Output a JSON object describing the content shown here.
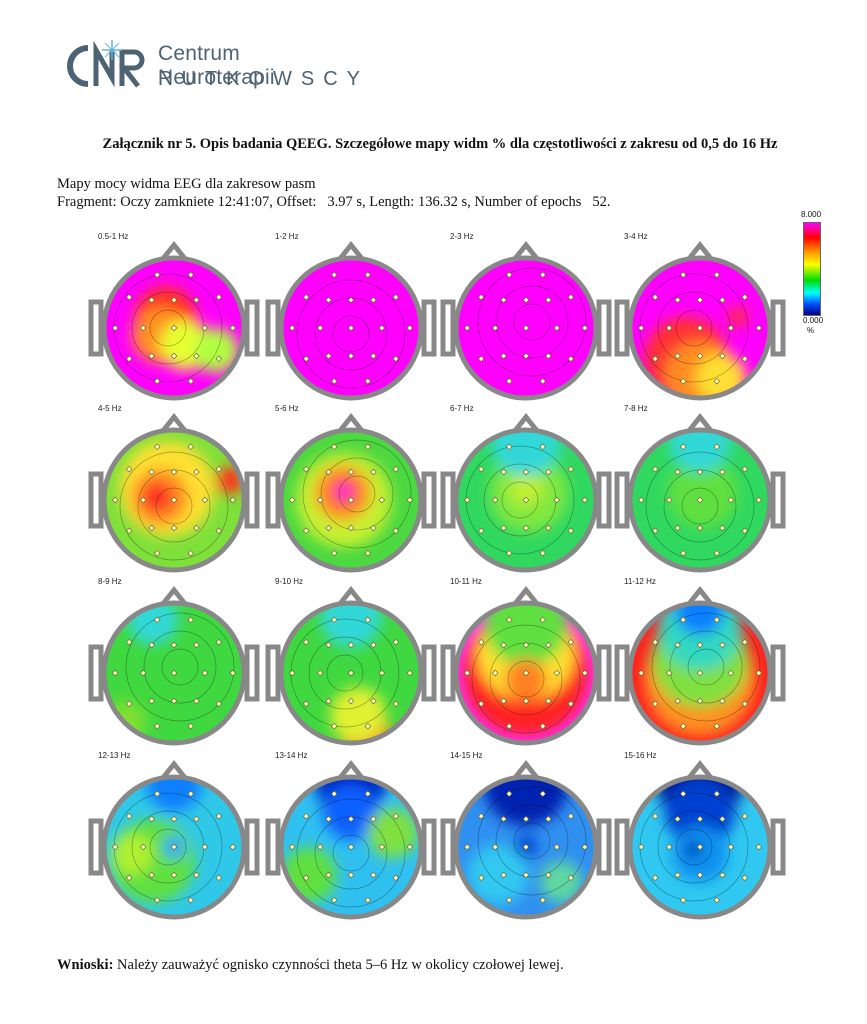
{
  "logo": {
    "mark_text": "CNR",
    "line1": "Centrum Neuroterapii",
    "line2": "RUTKOWSCY",
    "colors": {
      "text": "#4d6373",
      "accent": "#62b6d9"
    }
  },
  "title": "Załącznik nr 5. Opis badania QEEG. Szczegółowe mapy widm % dla częstotliwości z zakresu od 0,5 do 16 Hz",
  "subtitle1": "Mapy mocy widma EEG dla zakresow pasm",
  "subtitle2": "Fragment: Oczy zamkniete 12:41:07, Offset:   3.97 s, Length: 136.32 s, Number of epochs   52.",
  "scale": {
    "max": "8.000",
    "min": "0.000",
    "unit": "%"
  },
  "maps": [
    {
      "label": "0.5-1 Hz",
      "bg": "#ff00ff",
      "blobs": [
        [
          "#ff3020",
          0.44,
          0.42,
          0.22
        ],
        [
          "#ff9020",
          0.4,
          0.55,
          0.2
        ],
        [
          "#e8ff30",
          0.58,
          0.62,
          0.18
        ],
        [
          "#b0ff40",
          0.8,
          0.66,
          0.16
        ]
      ]
    },
    {
      "label": "1-2 Hz",
      "bg": "#ff00ff",
      "blobs": []
    },
    {
      "label": "2-3 Hz",
      "bg": "#ff00ff",
      "blobs": []
    },
    {
      "label": "3-4 Hz",
      "bg": "#ff00ff",
      "blobs": [
        [
          "#ff3030",
          0.4,
          0.72,
          0.3
        ],
        [
          "#ff8c20",
          0.5,
          0.84,
          0.25
        ],
        [
          "#ffe030",
          0.65,
          0.86,
          0.18
        ],
        [
          "#ff3030",
          0.77,
          0.42,
          0.07
        ]
      ]
    },
    {
      "label": "4-5 Hz",
      "bg": "#7ee03a",
      "blobs": [
        [
          "#ffe030",
          0.45,
          0.42,
          0.34
        ],
        [
          "#ff8820",
          0.4,
          0.48,
          0.2
        ],
        [
          "#ff2020",
          0.38,
          0.48,
          0.1
        ],
        [
          "#ff3020",
          0.9,
          0.36,
          0.1
        ]
      ]
    },
    {
      "label": "5-6 Hz",
      "bg": "#4cd840",
      "blobs": [
        [
          "#c8f030",
          0.45,
          0.5,
          0.34
        ],
        [
          "#ff9020",
          0.44,
          0.45,
          0.2
        ],
        [
          "#ff2030",
          0.45,
          0.44,
          0.1
        ],
        [
          "#ff30ff",
          0.45,
          0.44,
          0.05
        ]
      ]
    },
    {
      "label": "6-7 Hz",
      "bg": "#30d860",
      "blobs": [
        [
          "#80e840",
          0.52,
          0.45,
          0.28
        ],
        [
          "#c0f030",
          0.5,
          0.42,
          0.12
        ],
        [
          "#30d8d8",
          0.5,
          0.08,
          0.25
        ]
      ]
    },
    {
      "label": "7-8 Hz",
      "bg": "#30d860",
      "blobs": [
        [
          "#60e040",
          0.52,
          0.45,
          0.25
        ],
        [
          "#30d8d8",
          0.5,
          0.08,
          0.22
        ]
      ]
    },
    {
      "label": "8-9 Hz",
      "bg": "#40d840",
      "blobs": [
        [
          "#30d8d8",
          0.35,
          0.12,
          0.18
        ],
        [
          "#80e030",
          0.15,
          0.85,
          0.15
        ]
      ]
    },
    {
      "label": "9-10 Hz",
      "bg": "#40d840",
      "blobs": [
        [
          "#30d8d8",
          0.5,
          0.1,
          0.22
        ],
        [
          "#ff8020",
          0.6,
          0.92,
          0.18
        ],
        [
          "#e0f030",
          0.55,
          0.8,
          0.2
        ]
      ]
    },
    {
      "label": "10-11 Hz",
      "bg": "#ff30ff",
      "blobs": [
        [
          "#ff2020",
          0.5,
          0.5,
          0.45
        ],
        [
          "#ffe030",
          0.5,
          0.35,
          0.35
        ],
        [
          "#60e040",
          0.5,
          0.15,
          0.3
        ],
        [
          "#ff8020",
          0.5,
          0.55,
          0.15
        ]
      ]
    },
    {
      "label": "11-12 Hz",
      "bg": "#ff2020",
      "blobs": [
        [
          "#ff9020",
          0.5,
          0.55,
          0.4
        ],
        [
          "#80e040",
          0.5,
          0.4,
          0.35
        ],
        [
          "#30d8c0",
          0.5,
          0.18,
          0.3
        ],
        [
          "#1080ff",
          0.5,
          0.05,
          0.18
        ]
      ]
    },
    {
      "label": "12-13 Hz",
      "bg": "#30c8e8",
      "blobs": [
        [
          "#60e040",
          0.35,
          0.6,
          0.3
        ],
        [
          "#b0f030",
          0.2,
          0.55,
          0.15
        ],
        [
          "#1080ff",
          0.5,
          0.05,
          0.2
        ],
        [
          "#30a0ff",
          0.5,
          0.5,
          0.08
        ]
      ]
    },
    {
      "label": "13-14 Hz",
      "bg": "#30c0f0",
      "blobs": [
        [
          "#0020c0",
          0.5,
          0.05,
          0.25
        ],
        [
          "#1060ff",
          0.5,
          0.25,
          0.2
        ],
        [
          "#60e040",
          0.2,
          0.7,
          0.2
        ],
        [
          "#80e040",
          0.8,
          0.4,
          0.18
        ]
      ]
    },
    {
      "label": "14-15 Hz",
      "bg": "#3090f0",
      "blobs": [
        [
          "#0020b0",
          0.5,
          0.05,
          0.3
        ],
        [
          "#30c8f0",
          0.3,
          0.7,
          0.22
        ],
        [
          "#60d8a0",
          0.75,
          0.75,
          0.15
        ],
        [
          "#0040d0",
          0.5,
          0.5,
          0.08
        ]
      ]
    },
    {
      "label": "15-16 Hz",
      "bg": "#30c8f0",
      "blobs": [
        [
          "#000080",
          0.5,
          0.05,
          0.3
        ],
        [
          "#0040d0",
          0.5,
          0.25,
          0.25
        ],
        [
          "#1090f0",
          0.5,
          0.55,
          0.2
        ],
        [
          "#0030b0",
          0.45,
          0.52,
          0.06
        ]
      ]
    }
  ],
  "conclusion_label": "Wnioski:",
  "conclusion_text": "Należy zauważyć ognisko czynności theta 5–6 Hz w okolicy czołowej lewej."
}
